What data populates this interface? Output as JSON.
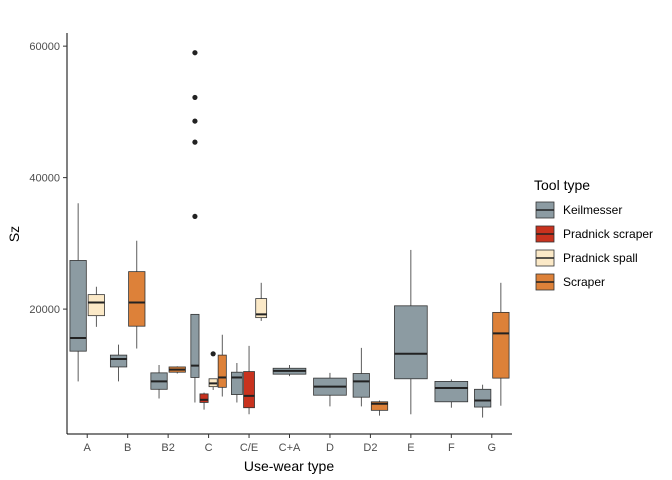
{
  "chart_data": {
    "type": "boxplot",
    "xlabel": "Use-wear type",
    "ylabel": "Sz",
    "ylim": [
      1000,
      62000
    ],
    "yticks": [
      20000,
      40000,
      60000
    ],
    "ytick_labels": [
      "20000",
      "40000",
      "60000"
    ],
    "categories": [
      "A",
      "B",
      "B2",
      "C",
      "C/E",
      "C+A",
      "D",
      "D2",
      "E",
      "F",
      "G"
    ],
    "legend": {
      "title": "Tool type",
      "placement": "right",
      "entries": [
        {
          "name": "Keilmesser",
          "color": "#8c9ba2"
        },
        {
          "name": "Pradnick scraper",
          "color": "#c8321e"
        },
        {
          "name": "Pradnick spall",
          "color": "#fbe9c7"
        },
        {
          "name": "Scraper",
          "color": "#dd8139"
        }
      ]
    },
    "boxes": [
      {
        "category": "A",
        "series": "Keilmesser",
        "whisker_low": 9000,
        "q1": 13600,
        "median": 15600,
        "q3": 27400,
        "whisker_high": 36100,
        "outliers": []
      },
      {
        "category": "A",
        "series": "Pradnick spall",
        "whisker_low": 17300,
        "q1": 19000,
        "median": 21000,
        "q3": 22200,
        "whisker_high": 23400,
        "outliers": []
      },
      {
        "category": "B",
        "series": "Keilmesser",
        "whisker_low": 9000,
        "q1": 11200,
        "median": 12400,
        "q3": 13000,
        "whisker_high": 14600,
        "outliers": []
      },
      {
        "category": "B",
        "series": "Scraper",
        "whisker_low": 14000,
        "q1": 17400,
        "median": 21000,
        "q3": 25700,
        "whisker_high": 30400,
        "outliers": []
      },
      {
        "category": "B2",
        "series": "Keilmesser",
        "whisker_low": 6400,
        "q1": 7800,
        "median": 9000,
        "q3": 10300,
        "whisker_high": 11500,
        "outliers": []
      },
      {
        "category": "B2",
        "series": "Scraper",
        "whisker_low": 10200,
        "q1": 10400,
        "median": 10800,
        "q3": 11200,
        "whisker_high": 11300,
        "outliers": []
      },
      {
        "category": "C",
        "series": "Keilmesser",
        "whisker_low": 5800,
        "q1": 9600,
        "median": 11400,
        "q3": 19200,
        "whisker_high": 19200,
        "outliers": [
          34100,
          45400,
          48600,
          52200,
          59000
        ]
      },
      {
        "category": "C",
        "series": "Pradnick scraper",
        "whisker_low": 4700,
        "q1": 5800,
        "median": 6200,
        "q3": 7100,
        "whisker_high": 7300,
        "outliers": []
      },
      {
        "category": "C",
        "series": "Pradnick spall",
        "whisker_low": 7700,
        "q1": 8200,
        "median": 8700,
        "q3": 9400,
        "whisker_high": 9400,
        "outliers": [
          13200
        ]
      },
      {
        "category": "C",
        "series": "Scraper",
        "whisker_low": 6700,
        "q1": 8100,
        "median": 9600,
        "q3": 13000,
        "whisker_high": 16100,
        "outliers": []
      },
      {
        "category": "C/E",
        "series": "Keilmesser",
        "whisker_low": 5800,
        "q1": 7000,
        "median": 9600,
        "q3": 10400,
        "whisker_high": 11800,
        "outliers": []
      },
      {
        "category": "C/E",
        "series": "Pradnick scraper",
        "whisker_low": 4000,
        "q1": 5000,
        "median": 6800,
        "q3": 10500,
        "whisker_high": 14400,
        "outliers": []
      },
      {
        "category": "C/E",
        "series": "Pradnick spall",
        "whisker_low": 18200,
        "q1": 18700,
        "median": 19200,
        "q3": 21600,
        "whisker_high": 24000,
        "outliers": []
      },
      {
        "category": "C+A",
        "series": "Keilmesser",
        "whisker_low": 9800,
        "q1": 10100,
        "median": 10600,
        "q3": 11000,
        "whisker_high": 11500,
        "outliers": []
      },
      {
        "category": "D",
        "series": "Keilmesser",
        "whisker_low": 5200,
        "q1": 6900,
        "median": 8200,
        "q3": 9500,
        "whisker_high": 10300,
        "outliers": []
      },
      {
        "category": "D2",
        "series": "Keilmesser",
        "whisker_low": 5200,
        "q1": 6600,
        "median": 9000,
        "q3": 10200,
        "whisker_high": 14100,
        "outliers": []
      },
      {
        "category": "D2",
        "series": "Scraper",
        "whisker_low": 3800,
        "q1": 4600,
        "median": 5600,
        "q3": 5900,
        "whisker_high": 6100,
        "outliers": []
      },
      {
        "category": "E",
        "series": "Keilmesser",
        "whisker_low": 4000,
        "q1": 9400,
        "median": 13200,
        "q3": 20500,
        "whisker_high": 29000,
        "outliers": []
      },
      {
        "category": "F",
        "series": "Keilmesser",
        "whisker_low": 5000,
        "q1": 5900,
        "median": 8000,
        "q3": 9000,
        "whisker_high": 9300,
        "outliers": []
      },
      {
        "category": "G",
        "series": "Keilmesser",
        "whisker_low": 3500,
        "q1": 5100,
        "median": 6100,
        "q3": 7800,
        "whisker_high": 8500,
        "outliers": []
      },
      {
        "category": "G",
        "series": "Scraper",
        "whisker_low": 5300,
        "q1": 9500,
        "median": 16300,
        "q3": 19500,
        "whisker_high": 24000,
        "outliers": []
      }
    ]
  }
}
